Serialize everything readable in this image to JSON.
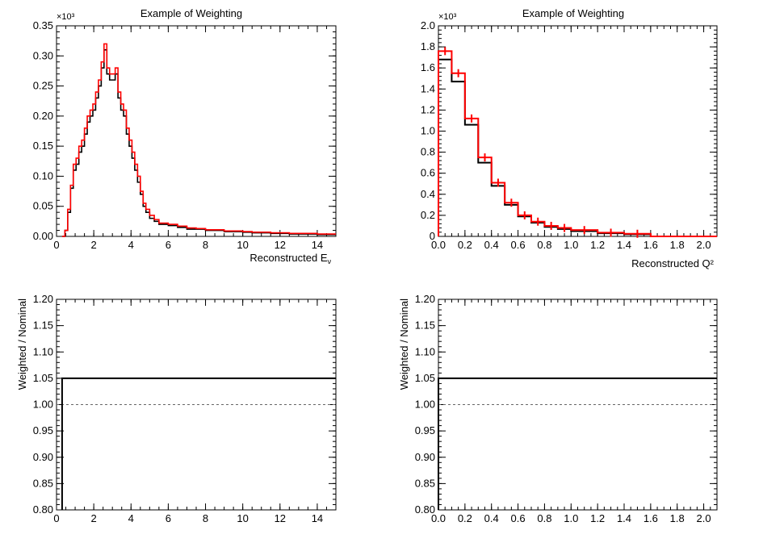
{
  "figure": {
    "background": "#ffffff",
    "nominal_color": "#000000",
    "weighted_color": "#ff0000",
    "reference_color": "#666666"
  },
  "chart_data": [
    {
      "id": "energy",
      "type": "line",
      "title": "Example of Weighting",
      "xlabel": "Reconstructed E",
      "xlabel_sub": "ν",
      "ylabel": "",
      "exponent": "×10³",
      "xlim": [
        0,
        15
      ],
      "ylim": [
        0,
        0.35
      ],
      "xticks": [
        "0",
        "2",
        "4",
        "6",
        "8",
        "10",
        "12",
        "14"
      ],
      "yticks": [
        "0.00",
        "0.05",
        "0.10",
        "0.15",
        "0.20",
        "0.25",
        "0.30",
        "0.35"
      ],
      "grid": false,
      "x": [
        0.3,
        0.45,
        0.6,
        0.75,
        0.9,
        1.05,
        1.2,
        1.35,
        1.5,
        1.65,
        1.8,
        1.95,
        2.1,
        2.25,
        2.4,
        2.55,
        2.7,
        2.85,
        3.0,
        3.15,
        3.3,
        3.45,
        3.6,
        3.75,
        3.9,
        4.05,
        4.2,
        4.35,
        4.5,
        4.65,
        4.8,
        5.0,
        5.25,
        5.5,
        5.75,
        6.0,
        6.5,
        7.0,
        7.5,
        8.0,
        8.5,
        9.0,
        9.5,
        10.0,
        10.5,
        11.0,
        11.5,
        12.0,
        12.5,
        13.0,
        13.5,
        14.0,
        14.5,
        15.0
      ],
      "series": [
        {
          "values": [
            0.0,
            0.01,
            0.04,
            0.08,
            0.11,
            0.12,
            0.14,
            0.15,
            0.17,
            0.19,
            0.2,
            0.21,
            0.23,
            0.25,
            0.28,
            0.31,
            0.27,
            0.26,
            0.26,
            0.27,
            0.23,
            0.21,
            0.2,
            0.17,
            0.15,
            0.13,
            0.11,
            0.09,
            0.07,
            0.05,
            0.04,
            0.03,
            0.025,
            0.02,
            0.02,
            0.018,
            0.015,
            0.012,
            0.012,
            0.01,
            0.01,
            0.008,
            0.008,
            0.007,
            0.006,
            0.006,
            0.005,
            0.005,
            0.004,
            0.004,
            0.004,
            0.003,
            0.003,
            0.003
          ]
        },
        {
          "values": [
            0.0,
            0.01,
            0.045,
            0.085,
            0.12,
            0.13,
            0.15,
            0.16,
            0.18,
            0.2,
            0.21,
            0.22,
            0.24,
            0.26,
            0.29,
            0.32,
            0.28,
            0.27,
            0.27,
            0.28,
            0.24,
            0.22,
            0.21,
            0.18,
            0.16,
            0.14,
            0.12,
            0.1,
            0.075,
            0.055,
            0.045,
            0.035,
            0.028,
            0.022,
            0.022,
            0.02,
            0.017,
            0.014,
            0.013,
            0.011,
            0.011,
            0.009,
            0.009,
            0.008,
            0.007,
            0.007,
            0.006,
            0.006,
            0.005,
            0.005,
            0.005,
            0.004,
            0.004,
            0.004
          ]
        }
      ]
    },
    {
      "id": "q2",
      "type": "bar",
      "title": "Example of Weighting",
      "xlabel": "Reconstructed Q²",
      "ylabel": "",
      "exponent": "×10³",
      "xlim": [
        0,
        2.1
      ],
      "ylim": [
        0,
        2.0
      ],
      "xticks": [
        "0.0",
        "0.2",
        "0.4",
        "0.6",
        "0.8",
        "1.0",
        "1.2",
        "1.4",
        "1.6",
        "1.8",
        "2.0"
      ],
      "yticks": [
        "0",
        "0.2",
        "0.4",
        "0.6",
        "0.8",
        "1.0",
        "1.2",
        "1.4",
        "1.6",
        "1.8",
        "2.0"
      ],
      "grid": false,
      "bin_edges": [
        0.0,
        0.1,
        0.2,
        0.3,
        0.4,
        0.5,
        0.6,
        0.7,
        0.8,
        0.9,
        1.0,
        1.2,
        1.4,
        1.6,
        1.8,
        2.1
      ],
      "series": [
        {
          "values": [
            1.68,
            1.47,
            1.06,
            0.7,
            0.48,
            0.3,
            0.19,
            0.13,
            0.09,
            0.07,
            0.05,
            0.03,
            0.02,
            0.0,
            0.0
          ]
        },
        {
          "values": [
            1.76,
            1.55,
            1.12,
            0.75,
            0.51,
            0.32,
            0.2,
            0.14,
            0.1,
            0.08,
            0.06,
            0.035,
            0.025,
            0.0,
            0.0
          ]
        }
      ]
    },
    {
      "id": "ratio-energy",
      "type": "line",
      "title": "",
      "xlabel": "",
      "ylabel": "Weighted / Nominal",
      "xlim": [
        0,
        15
      ],
      "ylim": [
        0.8,
        1.2
      ],
      "xticks": [
        "0",
        "2",
        "4",
        "6",
        "8",
        "10",
        "12",
        "14"
      ],
      "yticks": [
        "0.80",
        "0.85",
        "0.90",
        "0.95",
        "1.00",
        "1.05",
        "1.10",
        "1.15",
        "1.20"
      ],
      "grid": false,
      "x": [
        0.3,
        15
      ],
      "series": [
        {
          "values": [
            1.05,
            1.05
          ]
        }
      ],
      "reference_line": 1.0
    },
    {
      "id": "ratio-q2",
      "type": "line",
      "title": "",
      "xlabel": "",
      "ylabel": "Weighted / Nominal",
      "xlim": [
        0,
        2.1
      ],
      "ylim": [
        0.8,
        1.2
      ],
      "xticks": [
        "0.0",
        "0.2",
        "0.4",
        "0.6",
        "0.8",
        "1.0",
        "1.2",
        "1.4",
        "1.6",
        "1.8",
        "2.0"
      ],
      "yticks": [
        "0.80",
        "0.85",
        "0.90",
        "0.95",
        "1.00",
        "1.05",
        "1.10",
        "1.15",
        "1.20"
      ],
      "grid": false,
      "x": [
        0,
        2.1
      ],
      "series": [
        {
          "values": [
            1.05,
            1.05
          ]
        }
      ],
      "reference_line": 1.0
    }
  ]
}
